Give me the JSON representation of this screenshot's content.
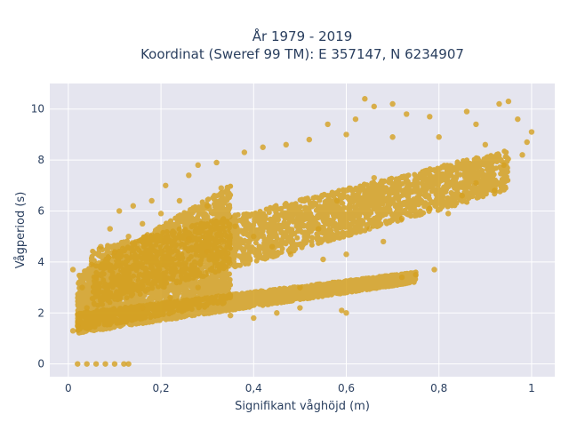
{
  "chart_data": {
    "type": "scatter",
    "title_line1": "År 1979 - 2019",
    "title_line2": "Koordinat (Sweref 99 TM): E 357147, N 6234907",
    "xlabel": "Signifikant våghöjd (m)",
    "ylabel": "Vågperiod (s)",
    "xlim": [
      -0.04,
      1.05
    ],
    "ylim": [
      -0.5,
      11
    ],
    "xticks": [
      {
        "value": 0,
        "label": "0"
      },
      {
        "value": 0.2,
        "label": "0,2"
      },
      {
        "value": 0.4,
        "label": "0,4"
      },
      {
        "value": 0.6,
        "label": "0,6"
      },
      {
        "value": 0.8,
        "label": "0,8"
      },
      {
        "value": 1.0,
        "label": "1"
      }
    ],
    "yticks": [
      {
        "value": 0,
        "label": "0"
      },
      {
        "value": 2,
        "label": "2"
      },
      {
        "value": 4,
        "label": "4"
      },
      {
        "value": 6,
        "label": "6"
      },
      {
        "value": 8,
        "label": "8"
      },
      {
        "value": 10,
        "label": "10"
      }
    ],
    "grid": true,
    "marker_color": "#D4A020",
    "background_color": "#E5E5EF",
    "density_regions": [
      {
        "x": [
          0.02,
          0.75
        ],
        "y_low": [
          1.2,
          3.2
        ],
        "y_high": [
          2.0,
          3.6
        ]
      },
      {
        "x": [
          0.05,
          0.95
        ],
        "y_low": [
          2.2,
          6.8
        ],
        "y_high": [
          4.5,
          8.4
        ]
      },
      {
        "x": [
          0.02,
          0.35
        ],
        "y_low": [
          1.3,
          2.4
        ],
        "y_high": [
          3.5,
          7.0
        ]
      }
    ],
    "points": [
      {
        "x": 0.01,
        "y": 1.3
      },
      {
        "x": 0.02,
        "y": 1.5
      },
      {
        "x": 0.01,
        "y": 3.7
      },
      {
        "x": 0.02,
        "y": 0.0
      },
      {
        "x": 0.04,
        "y": 0.0
      },
      {
        "x": 0.06,
        "y": 0.0
      },
      {
        "x": 0.08,
        "y": 0.0
      },
      {
        "x": 0.1,
        "y": 0.0
      },
      {
        "x": 0.12,
        "y": 0.0
      },
      {
        "x": 0.13,
        "y": 0.0
      },
      {
        "x": 0.05,
        "y": 3.9
      },
      {
        "x": 0.07,
        "y": 4.6
      },
      {
        "x": 0.09,
        "y": 5.3
      },
      {
        "x": 0.11,
        "y": 6.0
      },
      {
        "x": 0.14,
        "y": 6.2
      },
      {
        "x": 0.18,
        "y": 6.4
      },
      {
        "x": 0.21,
        "y": 7.0
      },
      {
        "x": 0.26,
        "y": 7.4
      },
      {
        "x": 0.28,
        "y": 7.8
      },
      {
        "x": 0.32,
        "y": 7.9
      },
      {
        "x": 0.38,
        "y": 8.3
      },
      {
        "x": 0.42,
        "y": 8.5
      },
      {
        "x": 0.47,
        "y": 8.6
      },
      {
        "x": 0.52,
        "y": 8.8
      },
      {
        "x": 0.56,
        "y": 9.4
      },
      {
        "x": 0.6,
        "y": 9.0
      },
      {
        "x": 0.62,
        "y": 9.6
      },
      {
        "x": 0.64,
        "y": 10.4
      },
      {
        "x": 0.66,
        "y": 10.1
      },
      {
        "x": 0.7,
        "y": 10.2
      },
      {
        "x": 0.73,
        "y": 9.8
      },
      {
        "x": 0.78,
        "y": 9.7
      },
      {
        "x": 0.86,
        "y": 9.9
      },
      {
        "x": 0.88,
        "y": 9.4
      },
      {
        "x": 0.93,
        "y": 10.2
      },
      {
        "x": 0.95,
        "y": 10.3
      },
      {
        "x": 0.97,
        "y": 9.6
      },
      {
        "x": 1.0,
        "y": 9.1
      },
      {
        "x": 0.99,
        "y": 8.7
      },
      {
        "x": 0.98,
        "y": 8.2
      },
      {
        "x": 0.92,
        "y": 6.8
      },
      {
        "x": 0.85,
        "y": 6.6
      },
      {
        "x": 0.78,
        "y": 6.1
      },
      {
        "x": 0.72,
        "y": 5.7
      },
      {
        "x": 0.68,
        "y": 4.8
      },
      {
        "x": 0.6,
        "y": 4.3
      },
      {
        "x": 0.55,
        "y": 4.1
      },
      {
        "x": 0.75,
        "y": 3.5
      },
      {
        "x": 0.72,
        "y": 3.4
      },
      {
        "x": 0.79,
        "y": 3.7
      },
      {
        "x": 0.6,
        "y": 2.0
      },
      {
        "x": 0.59,
        "y": 2.1
      },
      {
        "x": 0.5,
        "y": 2.2
      },
      {
        "x": 0.45,
        "y": 2.0
      },
      {
        "x": 0.4,
        "y": 1.8
      },
      {
        "x": 0.35,
        "y": 1.9
      },
      {
        "x": 0.5,
        "y": 3.0
      },
      {
        "x": 0.48,
        "y": 4.3
      },
      {
        "x": 0.44,
        "y": 4.6
      },
      {
        "x": 0.4,
        "y": 5.0
      },
      {
        "x": 0.36,
        "y": 5.4
      },
      {
        "x": 0.3,
        "y": 6.2
      },
      {
        "x": 0.33,
        "y": 6.9
      },
      {
        "x": 0.16,
        "y": 5.5
      },
      {
        "x": 0.13,
        "y": 5.0
      },
      {
        "x": 0.1,
        "y": 4.4
      },
      {
        "x": 0.06,
        "y": 3.4
      },
      {
        "x": 0.03,
        "y": 3.0
      },
      {
        "x": 0.04,
        "y": 2.2
      },
      {
        "x": 0.2,
        "y": 5.9
      },
      {
        "x": 0.24,
        "y": 6.4
      },
      {
        "x": 0.65,
        "y": 5.3
      },
      {
        "x": 0.82,
        "y": 5.9
      },
      {
        "x": 0.88,
        "y": 7.1
      },
      {
        "x": 0.94,
        "y": 7.8
      },
      {
        "x": 0.9,
        "y": 8.6
      },
      {
        "x": 0.8,
        "y": 8.9
      },
      {
        "x": 0.7,
        "y": 8.9
      },
      {
        "x": 0.66,
        "y": 7.3
      },
      {
        "x": 0.58,
        "y": 6.4
      },
      {
        "x": 0.54,
        "y": 5.3
      },
      {
        "x": 0.28,
        "y": 3.0
      },
      {
        "x": 0.22,
        "y": 2.6
      },
      {
        "x": 0.16,
        "y": 2.2
      },
      {
        "x": 0.3,
        "y": 4.4
      },
      {
        "x": 0.26,
        "y": 4.9
      }
    ]
  }
}
